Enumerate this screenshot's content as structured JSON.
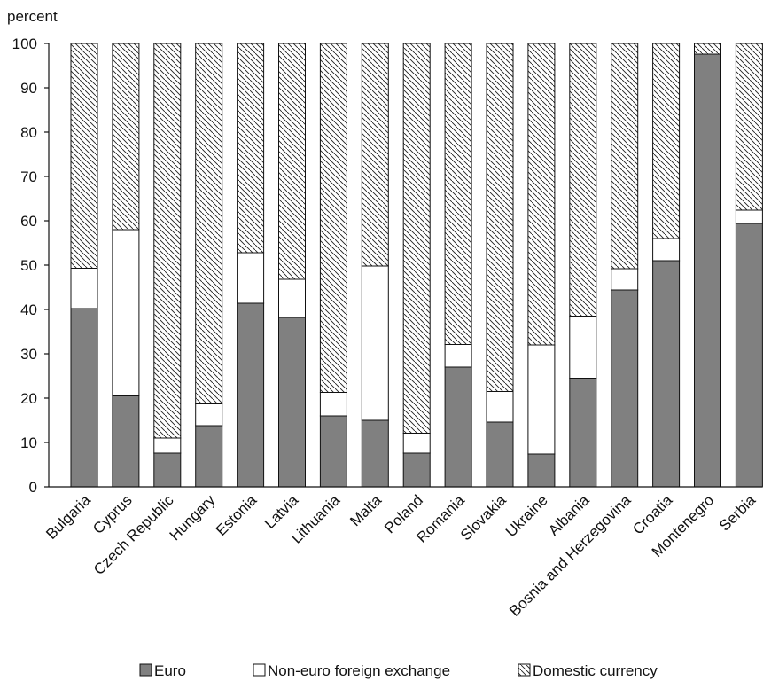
{
  "chart_data": {
    "type": "bar",
    "stacked": true,
    "ylabel": "percent",
    "ylim": [
      0,
      100
    ],
    "yticks": [
      0,
      10,
      20,
      30,
      40,
      50,
      60,
      70,
      80,
      90,
      100
    ],
    "grid": false,
    "legend_position": "bottom",
    "categories": [
      "Bulgaria",
      "Cyprus",
      "Czech Republic",
      "Hungary",
      "Estonia",
      "Latvia",
      "Lithuania",
      "Malta",
      "Poland",
      "Romania",
      "Slovakia",
      "Ukraine",
      "Albania",
      "Bosnia and Herzegovina",
      "Croatia",
      "Montenegro",
      "Serbia"
    ],
    "series": [
      {
        "name": "Euro",
        "color": "#808080",
        "fill": "solid",
        "values": [
          40.2,
          20.5,
          7.6,
          13.8,
          41.4,
          38.2,
          16.0,
          15.0,
          7.6,
          27.0,
          14.6,
          7.4,
          24.5,
          44.4,
          51.0,
          97.6,
          59.4
        ]
      },
      {
        "name": "Non-euro foreign exchange",
        "color": "#ffffff",
        "fill": "solid",
        "values": [
          9.1,
          37.5,
          3.4,
          4.9,
          11.4,
          8.6,
          5.3,
          34.8,
          4.5,
          5.1,
          6.9,
          24.6,
          14.0,
          4.8,
          5.0,
          0.0,
          3.0
        ]
      },
      {
        "name": "Domestic currency",
        "color": "#ffffff",
        "fill": "diagonal-hatch",
        "values": [
          50.7,
          42.0,
          89.0,
          81.3,
          47.2,
          53.2,
          78.7,
          50.2,
          87.9,
          67.9,
          78.5,
          68.0,
          61.5,
          50.8,
          44.0,
          2.4,
          37.6
        ]
      }
    ]
  }
}
